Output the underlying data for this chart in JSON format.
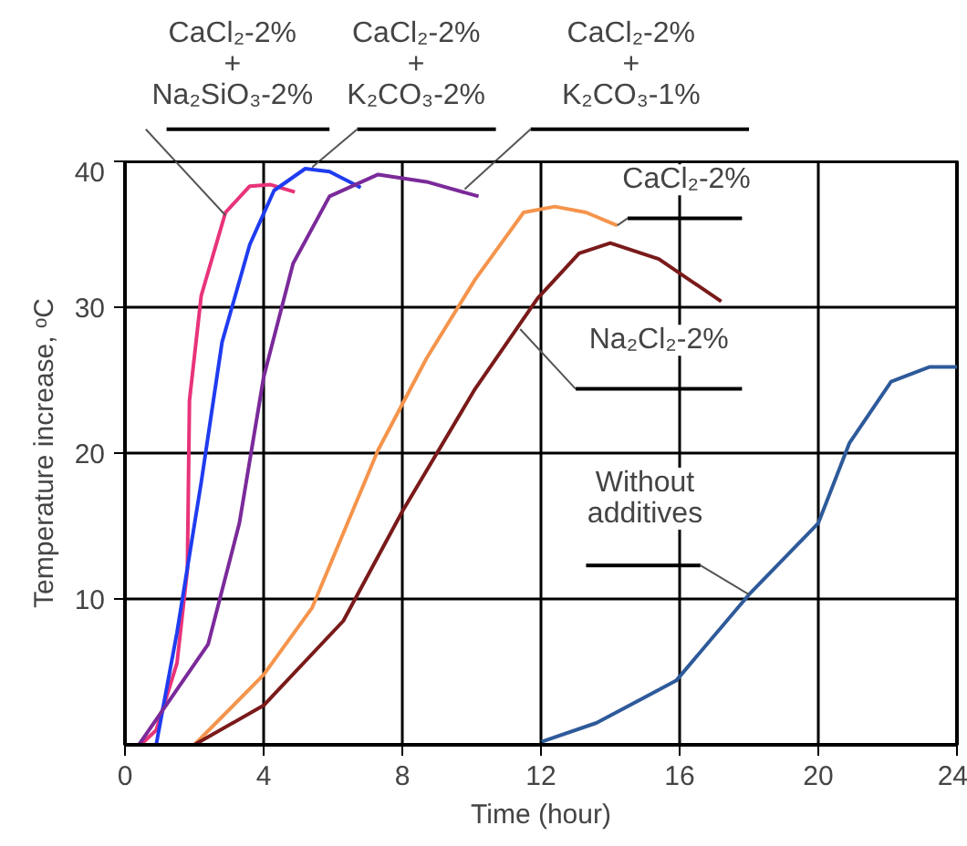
{
  "chart_data": {
    "type": "line",
    "xlabel": "Time (hour)",
    "ylabel": "Temperature increase, ᵒC",
    "xlim": [
      0,
      24
    ],
    "ylim": [
      0,
      40
    ],
    "xticks": [
      0,
      4,
      8,
      12,
      16,
      20,
      24
    ],
    "yticks": [
      10,
      20,
      30,
      40
    ],
    "grid": true,
    "series": [
      {
        "name": "CaCl₂-2%\n+\nNa₂SiO₃-2%",
        "color": "#e8337a",
        "x": [
          0.45,
          0.9,
          1.5,
          1.8,
          1.86,
          2.2,
          2.9,
          3.6,
          4.2,
          4.9
        ],
        "values": [
          0,
          1.0,
          5.6,
          12,
          23.6,
          30.8,
          36.5,
          38.3,
          38.4,
          37.9
        ]
      },
      {
        "name": "CaCl₂-2%\n+\nK₂CO₃-2%",
        "color": "#1f3cf0",
        "x": [
          0.9,
          1.5,
          2.2,
          2.8,
          3.6,
          4.3,
          5.2,
          5.9,
          6.8
        ],
        "values": [
          0,
          7.7,
          18,
          27.6,
          34.3,
          38,
          39.5,
          39.3,
          38.2
        ]
      },
      {
        "name": "CaCl₂-2%\n+\nK₂CO₃-1%",
        "color": "#7b2a9a",
        "x": [
          0.4,
          1.3,
          2.4,
          3.3,
          4.0,
          4.85,
          5.9,
          7.3,
          8.7,
          10.2
        ],
        "values": [
          0,
          3.1,
          6.9,
          15.2,
          25.2,
          33,
          37.6,
          39.1,
          38.6,
          37.6
        ]
      },
      {
        "name": "CaCl₂-2%",
        "color": "#f5944c",
        "x": [
          2.0,
          4.0,
          5.4,
          7.3,
          8.7,
          10.1,
          11.5,
          12.4,
          13.3,
          14.2
        ],
        "values": [
          0,
          4.8,
          9.4,
          20.2,
          26.5,
          31.9,
          36.5,
          36.9,
          36.5,
          35.6
        ]
      },
      {
        "name": "Na₂Cl₂-2%",
        "color": "#7a1a1a",
        "x": [
          2.0,
          4.0,
          6.3,
          8.0,
          10.1,
          11.9,
          13.1,
          14.0,
          15.4,
          17.2
        ],
        "values": [
          0,
          2.7,
          8.5,
          16,
          24.4,
          30.6,
          33.7,
          34.4,
          33.3,
          30.4
        ]
      },
      {
        "name": "Without\nadditives",
        "color": "#2e5a9a",
        "x": [
          12.0,
          13.6,
          15.9,
          18.0,
          20.0,
          20.9,
          22.1,
          23.2,
          24
        ],
        "values": [
          0.2,
          1.5,
          4.4,
          10.3,
          15.2,
          20.7,
          24.9,
          25.9,
          25.9
        ]
      }
    ]
  }
}
